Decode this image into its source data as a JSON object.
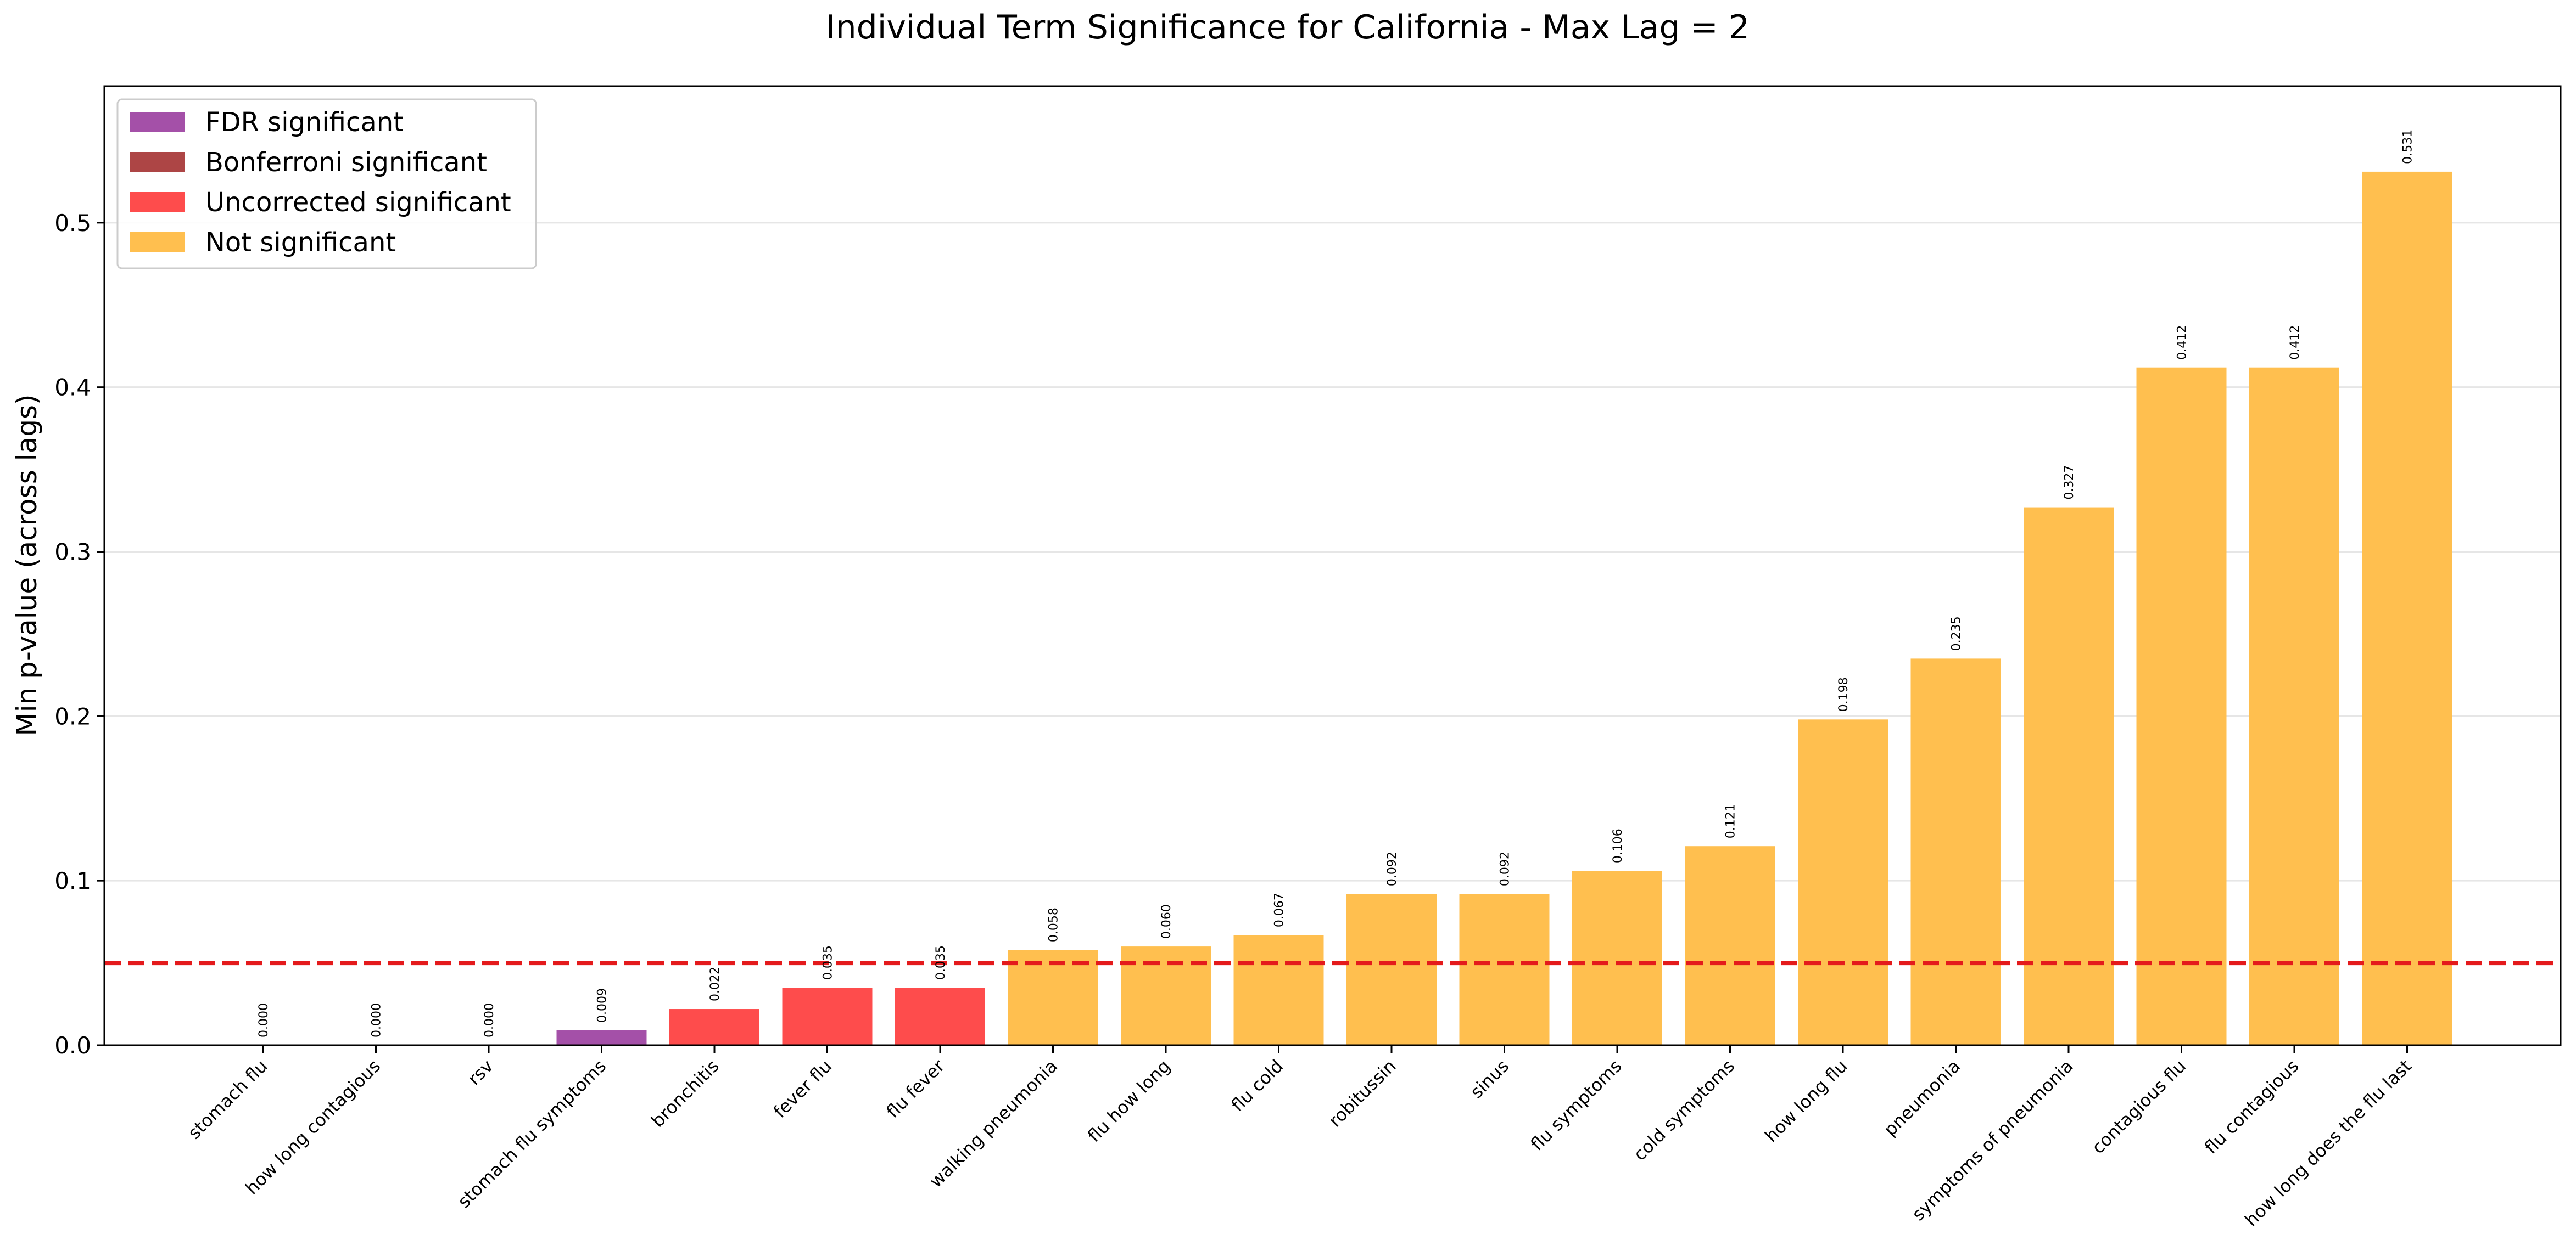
{
  "chart_data": {
    "type": "bar",
    "title": "Individual Term Significance for California - Max Lag = 2",
    "xlabel": "",
    "ylabel": "Min p-value (across lags)",
    "ylim": [
      0,
      0.583
    ],
    "yticks": [
      "0.0",
      "0.1",
      "0.2",
      "0.3",
      "0.4",
      "0.5"
    ],
    "grid": "horizontal",
    "threshold": 0.05,
    "threshold_color": "#e41a1c",
    "legend_position": "top-left",
    "legend": [
      {
        "label": "FDR significant",
        "color": "#a450a8"
      },
      {
        "label": "Bonferroni significant",
        "color": "#ad4545"
      },
      {
        "label": "Uncorrected significant",
        "color": "#fe4c4c"
      },
      {
        "label": "Not significant",
        "color": "#ffbf4f"
      }
    ],
    "categories": [
      "stomach flu",
      "how long contagious",
      "rsv",
      "stomach flu symptoms",
      "bronchitis",
      "fever flu",
      "flu fever",
      "walking pneumonia",
      "flu how long",
      "flu cold",
      "robitussin",
      "sinus",
      "flu symptoms",
      "cold symptoms",
      "how long flu",
      "pneumonia",
      "symptoms of pneumonia",
      "contagious flu",
      "flu contagious",
      "how long does the flu last"
    ],
    "values": [
      0.0,
      0.0,
      0.0,
      0.009,
      0.022,
      0.035,
      0.035,
      0.058,
      0.06,
      0.067,
      0.092,
      0.092,
      0.106,
      0.121,
      0.198,
      0.235,
      0.327,
      0.412,
      0.412,
      0.531
    ],
    "value_labels": [
      "0.000",
      "0.000",
      "0.000",
      "0.009",
      "0.022",
      "0.035",
      "0.035",
      "0.058",
      "0.060",
      "0.067",
      "0.092",
      "0.092",
      "0.106",
      "0.121",
      "0.198",
      "0.235",
      "0.327",
      "0.412",
      "0.412",
      "0.531"
    ],
    "significance": [
      "none",
      "none",
      "none",
      "FDR significant",
      "Uncorrected significant",
      "Uncorrected significant",
      "Uncorrected significant",
      "Not significant",
      "Not significant",
      "Not significant",
      "Not significant",
      "Not significant",
      "Not significant",
      "Not significant",
      "Not significant",
      "Not significant",
      "Not significant",
      "Not significant",
      "Not significant",
      "Not significant"
    ]
  }
}
